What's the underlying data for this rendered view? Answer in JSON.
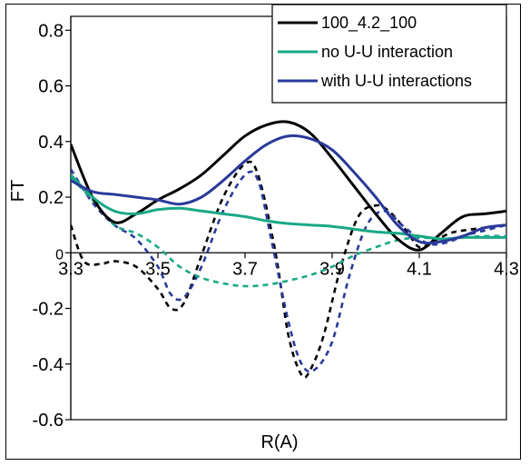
{
  "chart_data": {
    "type": "line",
    "xlabel": "R(A)",
    "ylabel": "FT",
    "xlim": [
      3.3,
      4.3
    ],
    "ylim": [
      -0.6,
      0.85
    ],
    "x_ticks": [
      "3.3",
      "3.5",
      "3.7",
      "3.9",
      "4.1",
      "4.3"
    ],
    "x_tick_values": [
      3.3,
      3.5,
      3.7,
      3.9,
      4.1,
      4.3
    ],
    "y_ticks": [
      "0.8",
      "0.6",
      "0.4",
      "0.2",
      "0",
      "-0.2",
      "-0.4",
      "-0.6"
    ],
    "y_tick_values": [
      0.8,
      0.6,
      0.4,
      0.2,
      0,
      -0.2,
      -0.4,
      -0.6
    ],
    "grid": false,
    "legend_position": "top-right",
    "series": [
      {
        "name": "100_4.2_100",
        "color": "#000000",
        "style": "solid",
        "x": [
          3.3,
          3.35,
          3.4,
          3.45,
          3.5,
          3.55,
          3.6,
          3.65,
          3.7,
          3.75,
          3.8,
          3.85,
          3.9,
          3.95,
          4.0,
          4.05,
          4.1,
          4.15,
          4.2,
          4.25,
          4.3
        ],
        "y": [
          0.39,
          0.2,
          0.11,
          0.14,
          0.19,
          0.23,
          0.28,
          0.35,
          0.42,
          0.46,
          0.47,
          0.43,
          0.34,
          0.24,
          0.14,
          0.05,
          0.01,
          0.07,
          0.13,
          0.14,
          0.15
        ]
      },
      {
        "name": "no U-U interaction",
        "color": "#1aa886",
        "style": "solid",
        "x": [
          3.3,
          3.35,
          3.4,
          3.45,
          3.5,
          3.55,
          3.6,
          3.65,
          3.7,
          3.75,
          3.8,
          3.85,
          3.9,
          3.95,
          4.0,
          4.05,
          4.1,
          4.15,
          4.2,
          4.25,
          4.3
        ],
        "y": [
          0.28,
          0.2,
          0.15,
          0.14,
          0.155,
          0.16,
          0.15,
          0.14,
          0.13,
          0.115,
          0.105,
          0.1,
          0.095,
          0.085,
          0.075,
          0.07,
          0.06,
          0.05,
          0.055,
          0.055,
          0.055
        ]
      },
      {
        "name": "with U-U interactions",
        "color": "#2a3a9a",
        "style": "solid",
        "x": [
          3.3,
          3.35,
          3.4,
          3.45,
          3.5,
          3.55,
          3.6,
          3.65,
          3.7,
          3.75,
          3.8,
          3.85,
          3.9,
          3.95,
          4.0,
          4.05,
          4.1,
          4.15,
          4.2,
          4.25,
          4.3
        ],
        "y": [
          0.26,
          0.22,
          0.21,
          0.2,
          0.19,
          0.175,
          0.2,
          0.26,
          0.33,
          0.39,
          0.42,
          0.41,
          0.37,
          0.29,
          0.2,
          0.1,
          0.04,
          0.04,
          0.06,
          0.09,
          0.1
        ]
      },
      {
        "name": "",
        "color": "#000000",
        "style": "dashed",
        "x": [
          3.3,
          3.33,
          3.37,
          3.4,
          3.45,
          3.5,
          3.53,
          3.56,
          3.6,
          3.65,
          3.7,
          3.73,
          3.77,
          3.8,
          3.83,
          3.85,
          3.88,
          3.92,
          3.96,
          4.0,
          4.03,
          4.07,
          4.1,
          4.13,
          4.17,
          4.2,
          4.25,
          4.3
        ],
        "y": [
          0.1,
          -0.03,
          -0.04,
          -0.03,
          -0.05,
          -0.13,
          -0.2,
          -0.18,
          -0.01,
          0.2,
          0.32,
          0.28,
          0.0,
          -0.3,
          -0.44,
          -0.42,
          -0.3,
          -0.05,
          0.13,
          0.17,
          0.15,
          0.08,
          0.02,
          0.04,
          0.07,
          0.08,
          0.09,
          0.1
        ]
      },
      {
        "name": "",
        "color": "#2a3a9a",
        "style": "dashed",
        "x": [
          3.3,
          3.35,
          3.4,
          3.45,
          3.5,
          3.53,
          3.56,
          3.6,
          3.65,
          3.7,
          3.73,
          3.76,
          3.8,
          3.83,
          3.86,
          3.9,
          3.94,
          3.98,
          4.02,
          4.06,
          4.1,
          4.13,
          4.17,
          4.2,
          4.25,
          4.3
        ],
        "y": [
          0.3,
          0.18,
          0.1,
          0.05,
          -0.05,
          -0.15,
          -0.16,
          -0.05,
          0.15,
          0.28,
          0.26,
          0.05,
          -0.25,
          -0.4,
          -0.42,
          -0.32,
          -0.08,
          0.1,
          0.15,
          0.1,
          0.05,
          0.03,
          0.04,
          0.06,
          0.08,
          0.1
        ]
      },
      {
        "name": "",
        "color": "#1aa886",
        "style": "dashed",
        "x": [
          3.3,
          3.35,
          3.4,
          3.45,
          3.5,
          3.55,
          3.6,
          3.65,
          3.7,
          3.75,
          3.8,
          3.85,
          3.9,
          3.95,
          4.0,
          4.05,
          4.1,
          4.15,
          4.2,
          4.25,
          4.3
        ],
        "y": [
          0.27,
          0.19,
          0.1,
          0.07,
          0.02,
          -0.05,
          -0.09,
          -0.11,
          -0.12,
          -0.115,
          -0.1,
          -0.08,
          -0.05,
          -0.01,
          0.02,
          0.045,
          0.055,
          0.05,
          0.055,
          0.06,
          0.06
        ]
      }
    ]
  }
}
